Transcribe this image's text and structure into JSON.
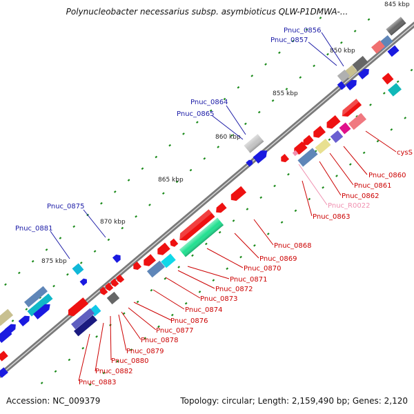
{
  "title": "Polynucleobacter necessarius subsp. asymbioticus QLW-P1DMWA-...",
  "footer": {
    "accession": "Accession: NC_009379",
    "topology": "Topology: circular; Length: 2,159,490 bp; Genes: 2,120"
  },
  "ticks": [
    "845 kbp",
    "850 kbp",
    "855 kbp",
    "860 kbp",
    "865 kbp",
    "870 kbp",
    "875 kbp"
  ],
  "forward_labels": [
    "Pnuc_0856",
    "Pnuc_0857",
    "Pnuc_0864",
    "Pnuc_0865",
    "Pnuc_0875",
    "Pnuc_0881"
  ],
  "reverse_labels": [
    "cysS",
    "Pnuc_0860",
    "Pnuc_0861",
    "Pnuc_0862",
    "Pnuc_R0022",
    "Pnuc_0863",
    "Pnuc_0868",
    "Pnuc_0869",
    "Pnuc_0870",
    "Pnuc_0871",
    "Pnuc_0872",
    "Pnuc_0873",
    "Pnuc_0874",
    "Pnuc_0876",
    "Pnuc_0877",
    "Pnuc_0878",
    "Pnuc_0879",
    "Pnuc_0880",
    "Pnuc_0882",
    "Pnuc_0883"
  ],
  "colors": {
    "forward_cds": "#0a0ae0",
    "reverse_cds": "#ee1111",
    "backbone": "#808080",
    "forward_label": "#1a1aa6",
    "reverse_label": "#cc0000",
    "rna_label": "#f090b0",
    "tick": "#1a8a1a"
  }
}
